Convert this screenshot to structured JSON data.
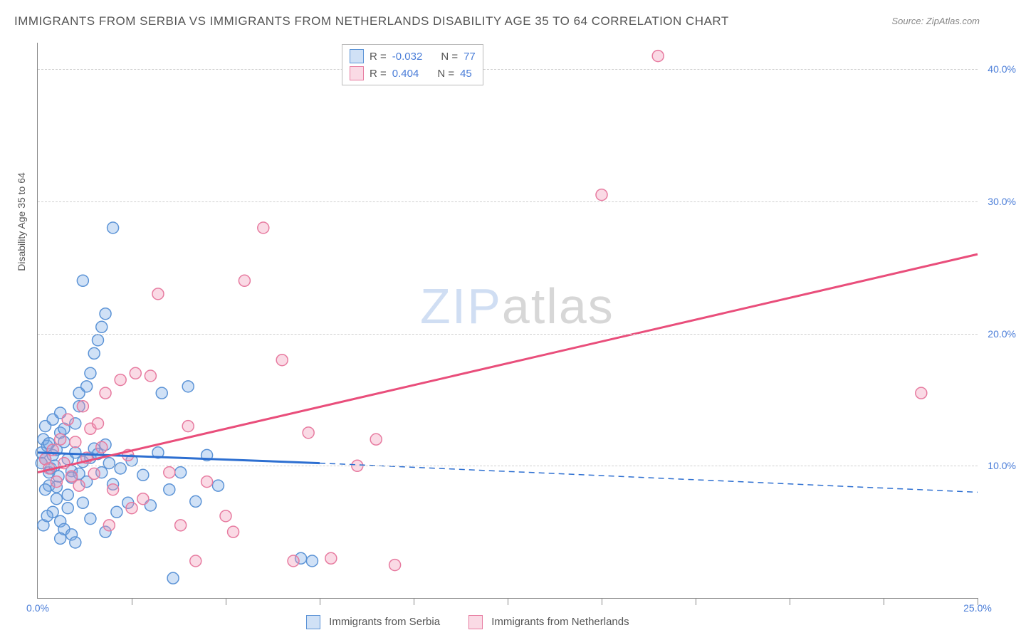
{
  "title": "IMMIGRANTS FROM SERBIA VS IMMIGRANTS FROM NETHERLANDS DISABILITY AGE 35 TO 64 CORRELATION CHART",
  "source": "Source: ZipAtlas.com",
  "y_axis_label": "Disability Age 35 to 64",
  "watermark": {
    "part1": "ZIP",
    "part2": "atlas"
  },
  "chart": {
    "type": "scatter",
    "background_color": "#ffffff",
    "grid_color": "#d0d0d0",
    "xlim": [
      0,
      25
    ],
    "ylim": [
      0,
      42
    ],
    "x_ticks": [
      0,
      2.5,
      5,
      7.5,
      10,
      12.5,
      15,
      17.5,
      20,
      22.5,
      25
    ],
    "x_tick_labels": {
      "0": "0.0%",
      "25": "25.0%"
    },
    "y_ticks": [
      10,
      20,
      30,
      40
    ],
    "y_tick_labels": {
      "10": "10.0%",
      "20": "20.0%",
      "30": "30.0%",
      "40": "40.0%"
    },
    "marker_radius": 8,
    "marker_stroke_width": 1.5,
    "series": [
      {
        "key": "serbia",
        "legend_label": "Immigrants from Serbia",
        "R_label": "R =",
        "R_value": "-0.032",
        "N_label": "N =",
        "N_value": "77",
        "fill_color": "rgba(120,170,230,0.35)",
        "stroke_color": "#5b93d6",
        "line_color": "#2d6fd1",
        "trend_solid": {
          "x1": 0,
          "y1": 11.0,
          "x2": 7.5,
          "y2": 10.2
        },
        "trend_dash": {
          "x1": 7.5,
          "y1": 10.2,
          "x2": 25,
          "y2": 8.0
        },
        "points": [
          [
            0.1,
            11
          ],
          [
            0.2,
            10.5
          ],
          [
            0.15,
            12
          ],
          [
            0.3,
            9.5
          ],
          [
            0.25,
            11.5
          ],
          [
            0.4,
            10.8
          ],
          [
            0.35,
            9.8
          ],
          [
            0.2,
            13
          ],
          [
            0.5,
            11.2
          ],
          [
            0.45,
            10
          ],
          [
            0.3,
            8.5
          ],
          [
            0.6,
            12.5
          ],
          [
            0.55,
            9.2
          ],
          [
            0.7,
            11.8
          ],
          [
            0.1,
            10.2
          ],
          [
            0.8,
            10.5
          ],
          [
            0.4,
            13.5
          ],
          [
            0.9,
            9.6
          ],
          [
            0.2,
            8.2
          ],
          [
            1.0,
            11
          ],
          [
            0.5,
            7.5
          ],
          [
            1.2,
            10.3
          ],
          [
            0.6,
            14
          ],
          [
            1.1,
            9.4
          ],
          [
            0.3,
            11.7
          ],
          [
            1.3,
            8.8
          ],
          [
            0.7,
            12.8
          ],
          [
            1.4,
            10.6
          ],
          [
            0.8,
            7.8
          ],
          [
            1.5,
            11.3
          ],
          [
            0.9,
            9.1
          ],
          [
            1.0,
            13.2
          ],
          [
            0.4,
            6.5
          ],
          [
            1.6,
            10.9
          ],
          [
            0.5,
            8.4
          ],
          [
            1.7,
            9.5
          ],
          [
            1.1,
            14.5
          ],
          [
            1.8,
            11.6
          ],
          [
            1.2,
            7.2
          ],
          [
            0.6,
            5.8
          ],
          [
            1.3,
            16
          ],
          [
            0.7,
            5.2
          ],
          [
            1.9,
            10.2
          ],
          [
            1.4,
            17
          ],
          [
            0.8,
            6.8
          ],
          [
            2.0,
            8.6
          ],
          [
            1.5,
            18.5
          ],
          [
            0.9,
            4.8
          ],
          [
            2.2,
            9.8
          ],
          [
            1.6,
            19.5
          ],
          [
            1.0,
            4.2
          ],
          [
            1.7,
            20.5
          ],
          [
            2.5,
            10.4
          ],
          [
            1.8,
            21.5
          ],
          [
            1.1,
            15.5
          ],
          [
            1.2,
            24
          ],
          [
            2.8,
            9.3
          ],
          [
            2.0,
            28
          ],
          [
            3.0,
            7.0
          ],
          [
            3.2,
            11
          ],
          [
            3.5,
            8.2
          ],
          [
            3.3,
            15.5
          ],
          [
            3.8,
            9.5
          ],
          [
            4.0,
            16
          ],
          [
            4.2,
            7.3
          ],
          [
            4.5,
            10.8
          ],
          [
            4.8,
            8.5
          ],
          [
            3.6,
            1.5
          ],
          [
            7.0,
            3.0
          ],
          [
            7.3,
            2.8
          ],
          [
            0.15,
            5.5
          ],
          [
            0.25,
            6.2
          ],
          [
            0.6,
            4.5
          ],
          [
            1.4,
            6.0
          ],
          [
            1.8,
            5.0
          ],
          [
            2.1,
            6.5
          ],
          [
            2.4,
            7.2
          ]
        ]
      },
      {
        "key": "netherlands",
        "legend_label": "Immigrants from Netherlands",
        "R_label": "R =",
        "R_value": "0.404",
        "N_label": "N =",
        "N_value": "45",
        "fill_color": "rgba(240,150,180,0.35)",
        "stroke_color": "#e77ba0",
        "line_color": "#e94e7b",
        "trend_solid": {
          "x1": 0,
          "y1": 9.5,
          "x2": 25,
          "y2": 26
        },
        "trend_dash": null,
        "points": [
          [
            0.2,
            10.5
          ],
          [
            0.3,
            9.8
          ],
          [
            0.4,
            11.2
          ],
          [
            0.5,
            8.8
          ],
          [
            0.6,
            12
          ],
          [
            0.7,
            10.2
          ],
          [
            0.8,
            13.5
          ],
          [
            0.9,
            9.2
          ],
          [
            1.0,
            11.8
          ],
          [
            1.1,
            8.5
          ],
          [
            1.2,
            14.5
          ],
          [
            1.3,
            10.6
          ],
          [
            1.4,
            12.8
          ],
          [
            1.5,
            9.4
          ],
          [
            1.6,
            13.2
          ],
          [
            1.7,
            11.4
          ],
          [
            1.8,
            15.5
          ],
          [
            2.0,
            8.2
          ],
          [
            2.2,
            16.5
          ],
          [
            2.4,
            10.8
          ],
          [
            2.6,
            17
          ],
          [
            2.8,
            7.5
          ],
          [
            3.0,
            16.8
          ],
          [
            3.2,
            23
          ],
          [
            3.5,
            9.5
          ],
          [
            3.8,
            5.5
          ],
          [
            4.0,
            13
          ],
          [
            4.5,
            8.8
          ],
          [
            5.0,
            6.2
          ],
          [
            5.5,
            24
          ],
          [
            6.0,
            28
          ],
          [
            6.5,
            18
          ],
          [
            6.8,
            2.8
          ],
          [
            7.2,
            12.5
          ],
          [
            7.8,
            3.0
          ],
          [
            8.5,
            10.0
          ],
          [
            9.0,
            12
          ],
          [
            9.5,
            2.5
          ],
          [
            15.0,
            30.5
          ],
          [
            16.5,
            41
          ],
          [
            23.5,
            15.5
          ],
          [
            4.2,
            2.8
          ],
          [
            5.2,
            5.0
          ],
          [
            1.9,
            5.5
          ],
          [
            2.5,
            6.8
          ]
        ]
      }
    ]
  }
}
